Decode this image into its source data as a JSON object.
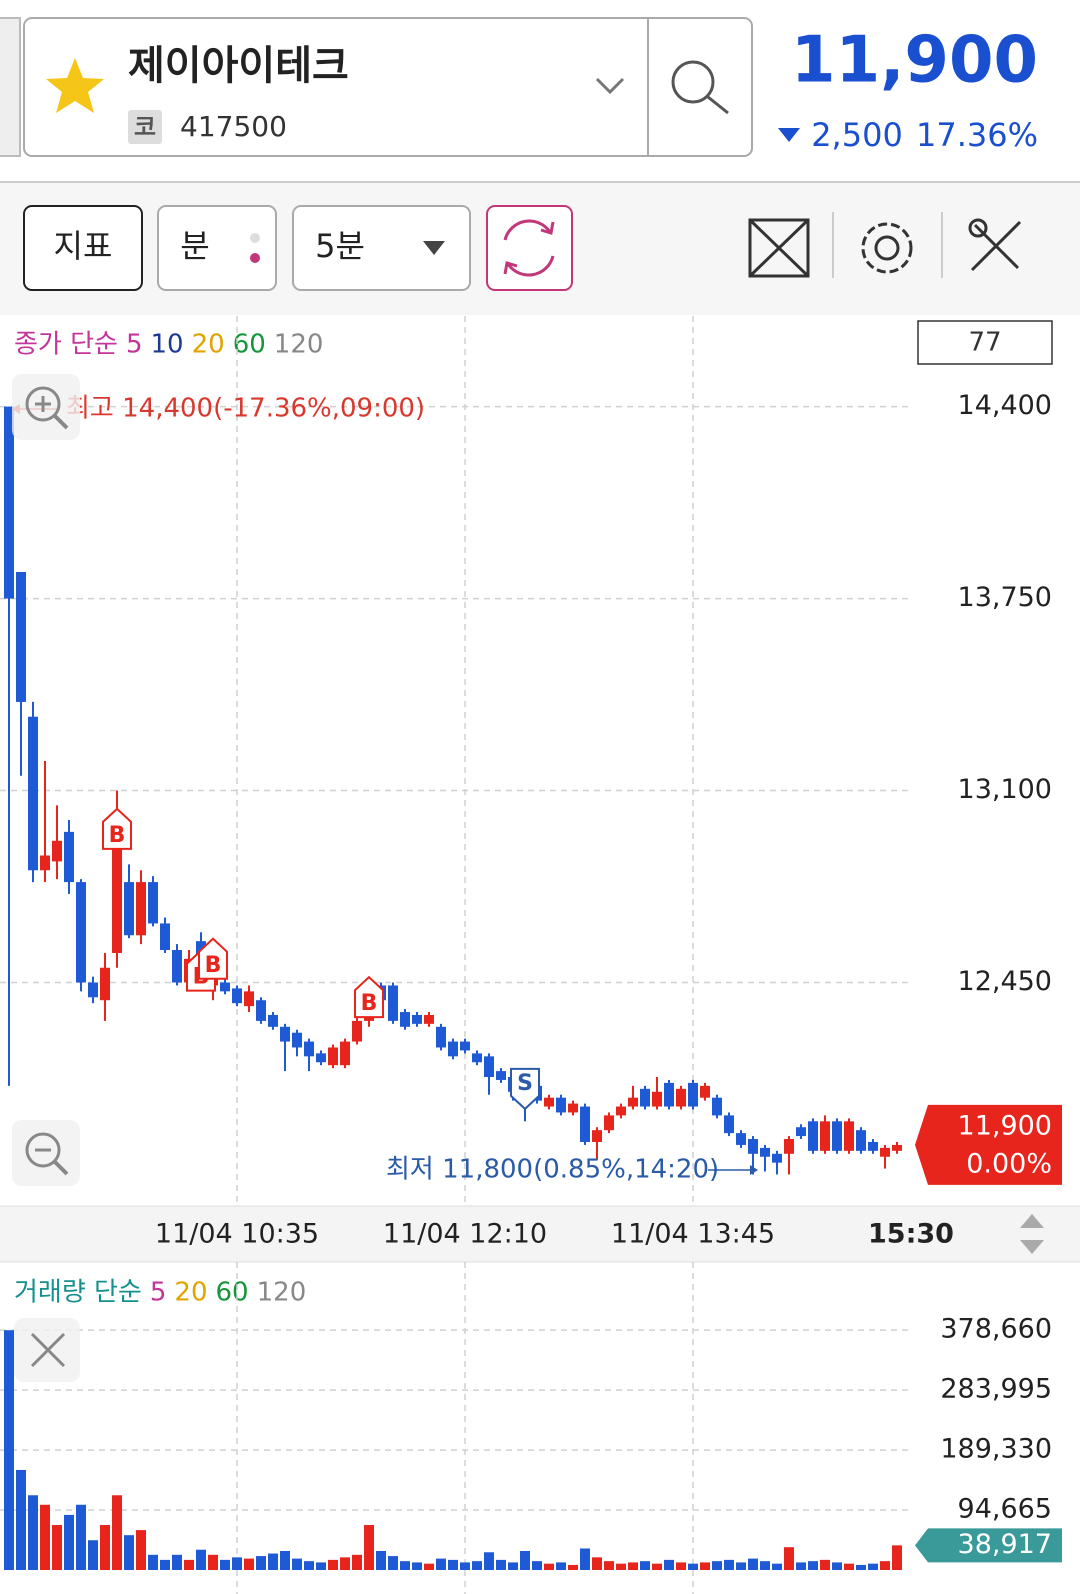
{
  "header": {
    "name": "제이아이테크",
    "badge": "코",
    "code": "417500",
    "price": "11,900",
    "change": "2,500",
    "change_pct": "17.36%"
  },
  "toolbar": {
    "indicator": "지표",
    "unit": "분",
    "period": "5분"
  },
  "chart_data": [
    {
      "type": "candlestick",
      "legend_title": "종가 단순",
      "ma_legend": [
        {
          "name": "5",
          "color": "#c2369b"
        },
        {
          "name": "10",
          "color": "#1d3a94"
        },
        {
          "name": "20",
          "color": "#e0a400"
        },
        {
          "name": "60",
          "color": "#16963a"
        },
        {
          "name": "120",
          "color": "#888888"
        }
      ],
      "info_box": "77",
      "up_color": "#e8251c",
      "down_color": "#1f5ad6",
      "grid": true,
      "ylim": [
        11700,
        14700
      ],
      "yticks": [
        {
          "value": 14400,
          "label": "14,400"
        },
        {
          "value": 13750,
          "label": "13,750"
        },
        {
          "value": 13100,
          "label": "13,100"
        },
        {
          "value": 12450,
          "label": "12,450"
        }
      ],
      "xticks": [
        {
          "value": 19,
          "label": "11/04 10:35"
        },
        {
          "value": 38,
          "label": "11/04 12:10"
        },
        {
          "value": 57,
          "label": "11/04 13:45"
        }
      ],
      "x_end_label": "15:30",
      "high_annotation": "최고 14,400(-17.36%,09:00)",
      "low_annotation": "최저 11,800(0.85%,14:20)",
      "last": {
        "value": 11900,
        "label": "11,900",
        "change": "0.00%"
      },
      "signals": [
        {
          "index": 9,
          "label": "B"
        },
        {
          "index": 16,
          "label": "B"
        },
        {
          "index": 17,
          "label": "B"
        },
        {
          "index": 30,
          "label": "B"
        },
        {
          "index": 43,
          "label": "S"
        }
      ],
      "candles": [
        [
          14400,
          14400,
          12100,
          13750
        ],
        [
          13840,
          13840,
          13150,
          13400
        ],
        [
          13350,
          13400,
          12790,
          12830
        ],
        [
          12830,
          13200,
          12790,
          12880
        ],
        [
          12860,
          13050,
          12800,
          12930
        ],
        [
          12960,
          13000,
          12750,
          12790
        ],
        [
          12790,
          12800,
          12420,
          12450
        ],
        [
          12450,
          12470,
          12380,
          12400
        ],
        [
          12390,
          12550,
          12320,
          12500
        ],
        [
          12550,
          13100,
          12500,
          12950
        ],
        [
          12790,
          12850,
          12600,
          12610
        ],
        [
          12610,
          12830,
          12580,
          12790
        ],
        [
          12790,
          12810,
          12640,
          12650
        ],
        [
          12650,
          12670,
          12550,
          12560
        ],
        [
          12560,
          12580,
          12440,
          12450
        ],
        [
          12450,
          12560,
          12430,
          12530
        ],
        [
          12590,
          12620,
          12460,
          12470
        ],
        [
          12440,
          12520,
          12390,
          12510
        ],
        [
          12450,
          12470,
          12410,
          12420
        ],
        [
          12430,
          12440,
          12370,
          12380
        ],
        [
          12370,
          12440,
          12350,
          12420
        ],
        [
          12390,
          12400,
          12310,
          12320
        ],
        [
          12340,
          12350,
          12290,
          12300
        ],
        [
          12300,
          12310,
          12150,
          12250
        ],
        [
          12280,
          12290,
          12200,
          12230
        ],
        [
          12250,
          12260,
          12150,
          12200
        ],
        [
          12210,
          12220,
          12170,
          12180
        ],
        [
          12170,
          12240,
          12160,
          12230
        ],
        [
          12170,
          12260,
          12160,
          12250
        ],
        [
          12250,
          12340,
          12240,
          12320
        ],
        [
          12320,
          12420,
          12300,
          12380
        ],
        [
          12440,
          12450,
          12380,
          12390
        ],
        [
          12440,
          12450,
          12310,
          12320
        ],
        [
          12350,
          12360,
          12290,
          12300
        ],
        [
          12340,
          12350,
          12300,
          12310
        ],
        [
          12310,
          12350,
          12300,
          12340
        ],
        [
          12300,
          12310,
          12220,
          12230
        ],
        [
          12250,
          12260,
          12190,
          12200
        ],
        [
          12250,
          12260,
          12210,
          12220
        ],
        [
          12210,
          12220,
          12170,
          12180
        ],
        [
          12200,
          12210,
          12070,
          12130
        ],
        [
          12150,
          12160,
          12110,
          12120
        ],
        [
          12130,
          12140,
          12050,
          12080
        ],
        [
          12110,
          12120,
          11980,
          12070
        ],
        [
          12100,
          12110,
          12040,
          12050
        ],
        [
          12030,
          12070,
          12020,
          12060
        ],
        [
          12060,
          12070,
          12000,
          12010
        ],
        [
          12010,
          12050,
          12000,
          12040
        ],
        [
          12030,
          12040,
          11900,
          11910
        ],
        [
          11910,
          11960,
          11850,
          11950
        ],
        [
          11950,
          12010,
          11940,
          12000
        ],
        [
          12000,
          12040,
          11990,
          12030
        ],
        [
          12030,
          12100,
          12020,
          12060
        ],
        [
          12090,
          12100,
          12020,
          12030
        ],
        [
          12030,
          12130,
          12020,
          12080
        ],
        [
          12110,
          12120,
          12020,
          12030
        ],
        [
          12030,
          12100,
          12020,
          12090
        ],
        [
          12110,
          12120,
          12020,
          12030
        ],
        [
          12060,
          12110,
          12050,
          12100
        ],
        [
          12060,
          12070,
          11990,
          12000
        ],
        [
          12000,
          12010,
          11930,
          11940
        ],
        [
          11940,
          11950,
          11890,
          11900
        ],
        [
          11920,
          11930,
          11800,
          11870
        ],
        [
          11890,
          11900,
          11810,
          11860
        ],
        [
          11870,
          11880,
          11800,
          11840
        ],
        [
          11870,
          11930,
          11800,
          11920
        ],
        [
          11960,
          11970,
          11920,
          11930
        ],
        [
          11980,
          11990,
          11870,
          11880
        ],
        [
          11880,
          12000,
          11870,
          11980
        ],
        [
          11980,
          11990,
          11870,
          11880
        ],
        [
          11880,
          11990,
          11870,
          11980
        ],
        [
          11950,
          11960,
          11870,
          11880
        ],
        [
          11910,
          11920,
          11870,
          11880
        ],
        [
          11860,
          11900,
          11820,
          11890
        ],
        [
          11880,
          11910,
          11870,
          11900
        ]
      ]
    },
    {
      "type": "bar",
      "legend_title": "거래량 단순",
      "ma_legend": [
        {
          "name": "5",
          "color": "#c2369b"
        },
        {
          "name": "20",
          "color": "#e0a400"
        },
        {
          "name": "60",
          "color": "#16963a"
        },
        {
          "name": "120",
          "color": "#888888"
        }
      ],
      "grid": true,
      "ylim": [
        0,
        420000
      ],
      "yticks": [
        {
          "value": 378660,
          "label": "378,660"
        },
        {
          "value": 283995,
          "label": "283,995"
        },
        {
          "value": 189330,
          "label": "189,330"
        },
        {
          "value": 94665,
          "label": "94,665"
        }
      ],
      "last": {
        "value": 38917,
        "label": "38,917"
      },
      "values": [
        378660,
        158000,
        118000,
        103000,
        71000,
        87000,
        103000,
        47000,
        71000,
        118000,
        55000,
        63000,
        24000,
        16000,
        24000,
        16000,
        32000,
        24000,
        16000,
        20000,
        18000,
        22000,
        26000,
        30000,
        18000,
        14000,
        12000,
        16000,
        20000,
        24000,
        71000,
        30000,
        22000,
        14000,
        12000,
        10000,
        18000,
        16000,
        12000,
        14000,
        28000,
        16000,
        12000,
        30000,
        14000,
        10000,
        12000,
        8000,
        34000,
        20000,
        14000,
        10000,
        12000,
        14000,
        10000,
        16000,
        12000,
        10000,
        12000,
        14000,
        16000,
        12000,
        18000,
        14000,
        10000,
        36000,
        12000,
        14000,
        16000,
        12000,
        10000,
        8000,
        10000,
        14000,
        38917
      ]
    }
  ]
}
